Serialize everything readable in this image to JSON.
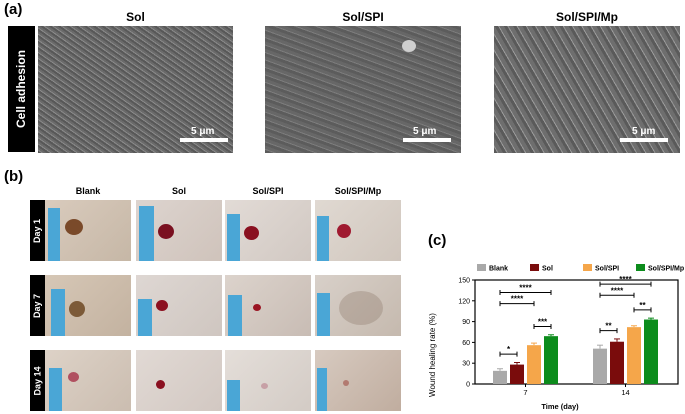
{
  "panel_a": {
    "letter": "(a)",
    "side_label": "Cell adhesion",
    "images": [
      {
        "title": "Sol",
        "scale": "5 μm"
      },
      {
        "title": "Sol/SPI",
        "scale": "5 μm"
      },
      {
        "title": "Sol/SPI/Mp",
        "scale": "5 μm"
      }
    ]
  },
  "panel_b": {
    "letter": "(b)",
    "columns": [
      "Blank",
      "Sol",
      "Sol/SPI",
      "Sol/SPI/Mp"
    ],
    "rows": [
      "Day 1",
      "Day 7",
      "Day 14"
    ]
  },
  "panel_c": {
    "letter": "(c)"
  },
  "colors": {
    "blank": "#a9a9a9",
    "sol": "#7a0c0c",
    "sol_spi": "#f5a64a",
    "sol_spi_mp": "#0c8c1c"
  },
  "chart_data": {
    "type": "bar",
    "categories": [
      "7",
      "14"
    ],
    "series": [
      {
        "name": "Blank",
        "values": [
          19,
          51
        ],
        "errors": [
          3,
          5
        ]
      },
      {
        "name": "Sol",
        "values": [
          28,
          61
        ],
        "errors": [
          3,
          4
        ]
      },
      {
        "name": "Sol/SPI",
        "values": [
          56,
          82
        ],
        "errors": [
          3,
          2
        ]
      },
      {
        "name": "Sol/SPI/Mp",
        "values": [
          69,
          93
        ],
        "errors": [
          2,
          2
        ]
      }
    ],
    "xlabel": "Time (day)",
    "ylabel": "Wound healing rate (%)",
    "ylim": [
      0,
      150
    ],
    "yticks": [
      "0",
      "30",
      "60",
      "90",
      "120",
      "150"
    ],
    "legend": "top",
    "significance": [
      {
        "group": "7",
        "from": "Blank",
        "to": "Sol",
        "label": "*"
      },
      {
        "group": "7",
        "from": "Sol/SPI",
        "to": "Sol/SPI/Mp",
        "label": "***"
      },
      {
        "group": "7",
        "from": "Blank",
        "to": "Sol/SPI",
        "label": "****"
      },
      {
        "group": "7",
        "from": "Blank",
        "to": "Sol/SPI/Mp",
        "label": "****"
      },
      {
        "group": "14",
        "from": "Blank",
        "to": "Sol",
        "label": "**"
      },
      {
        "group": "14",
        "from": "Sol/SPI",
        "to": "Sol/SPI/Mp",
        "label": "**"
      },
      {
        "group": "14",
        "from": "Blank",
        "to": "Sol/SPI",
        "label": "****"
      },
      {
        "group": "14",
        "from": "Blank",
        "to": "Sol/SPI/Mp",
        "label": "****"
      }
    ]
  }
}
